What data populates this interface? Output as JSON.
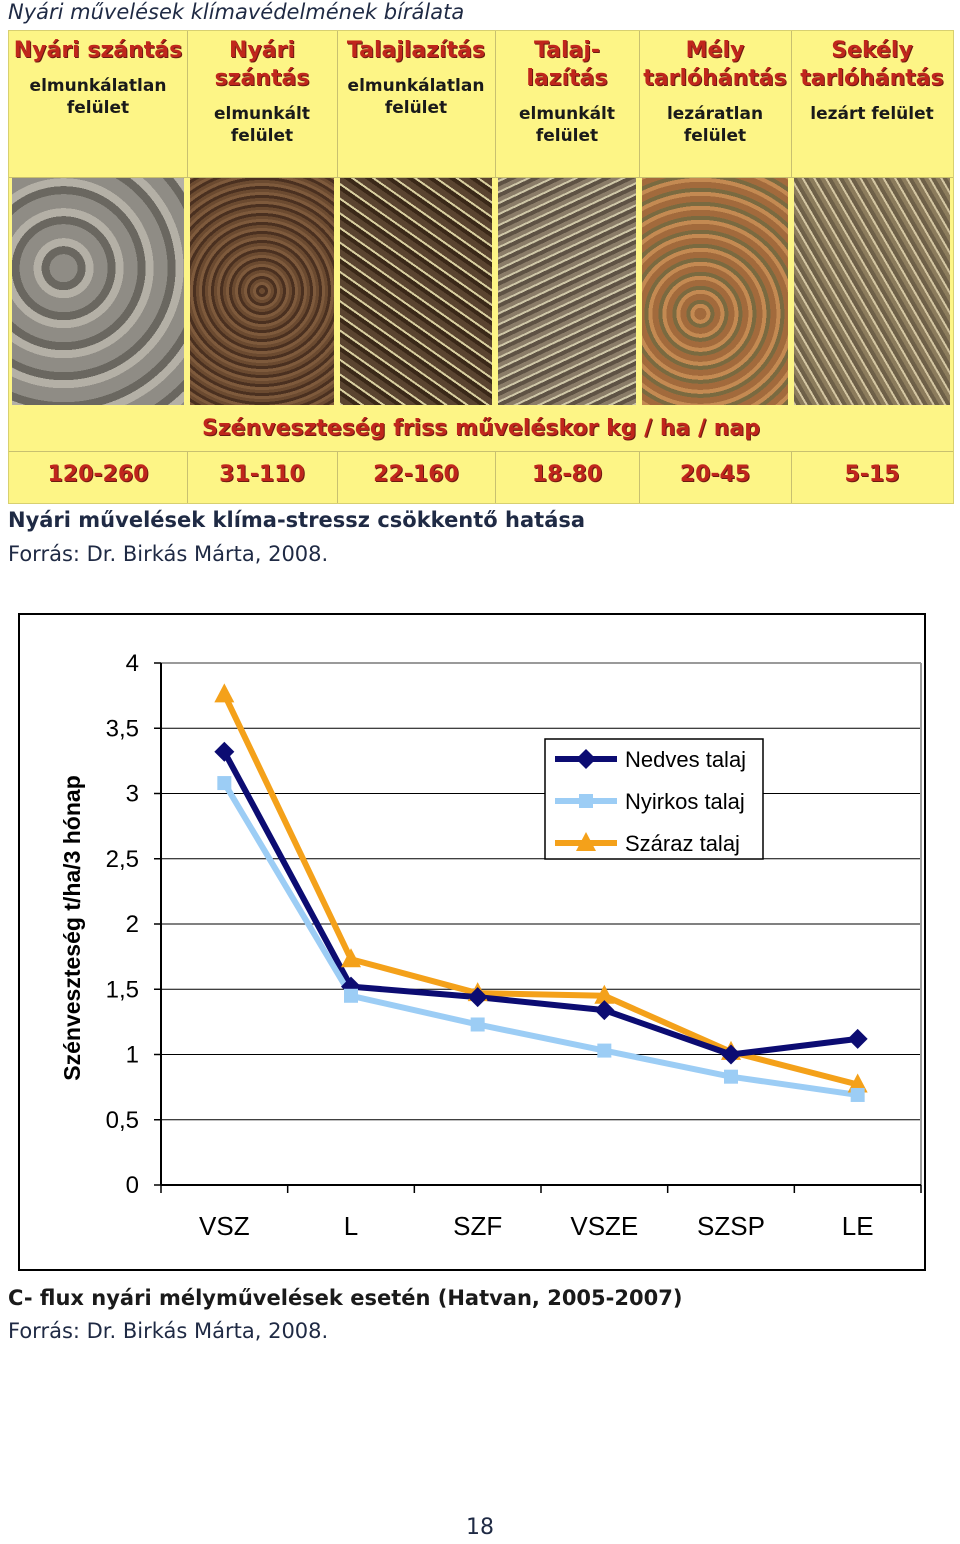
{
  "header": {
    "title": "Nyári művelések klímavédelmének bírálata"
  },
  "figure1": {
    "columns": [
      {
        "title": "Nyári szántás",
        "subtitle": "elmunkálatlan felület",
        "photo": "rough-plowed-soil"
      },
      {
        "title": "Nyári szántás",
        "subtitle": "elmunkált felület",
        "photo": "finished-plowed-soil"
      },
      {
        "title": "Talajlazítás",
        "subtitle": "elmunkálatlan felület",
        "photo": "loosened-soil-straw"
      },
      {
        "title": "Talaj-lazítás",
        "subtitle": "elmunkált felület",
        "photo": "finished-loosened-soil"
      },
      {
        "title": "Mély tarlóhántás",
        "subtitle": "lezáratlan felület",
        "photo": "deep-stubble-open"
      },
      {
        "title": "Sekély tarlóhántás",
        "subtitle": "lezárt felület",
        "photo": "shallow-stubble-closed"
      }
    ],
    "band_label": "Szénveszteség friss műveléskor kg / ha / nap",
    "values": [
      "120-260",
      "31-110",
      "22-160",
      "18-80",
      "20-45",
      "5-15"
    ],
    "colors": {
      "background": "#fdf586",
      "title_red": "#c0261c"
    }
  },
  "caption1": {
    "title": "Nyári művelések klíma-stressz csökkentő hatása",
    "source": "Forrás: Dr. Birkás Márta, 2008."
  },
  "chart_data": {
    "type": "line",
    "title": "",
    "xlabel": "",
    "ylabel": "Szénveszteség t/ha/3 hónap",
    "categories": [
      "VSZ",
      "L",
      "SZF",
      "VSZE",
      "SZSP",
      "LE"
    ],
    "ylim": [
      0,
      4
    ],
    "yticks": [
      "0",
      "0,5",
      "1",
      "1,5",
      "2",
      "2,5",
      "3",
      "3,5",
      "4"
    ],
    "grid": true,
    "legend": "top-right",
    "series": [
      {
        "name": "Nedves talaj",
        "color": "#0c0c72",
        "marker": "diamond",
        "values": [
          3.32,
          1.52,
          1.44,
          1.34,
          1.0,
          1.12
        ]
      },
      {
        "name": "Nyirkos talaj",
        "color": "#9ccdf5",
        "marker": "square",
        "values": [
          3.08,
          1.45,
          1.23,
          1.03,
          0.83,
          0.69
        ]
      },
      {
        "name": "Száraz talaj",
        "color": "#f4a11a",
        "marker": "triangle",
        "values": [
          3.76,
          1.73,
          1.47,
          1.45,
          1.02,
          0.77
        ]
      }
    ]
  },
  "caption2": {
    "title": "C- flux nyári mélyművelések esetén (Hatvan, 2005-2007)",
    "source": "Forrás: Dr. Birkás Márta, 2008."
  },
  "footer": {
    "page_number": "18"
  }
}
